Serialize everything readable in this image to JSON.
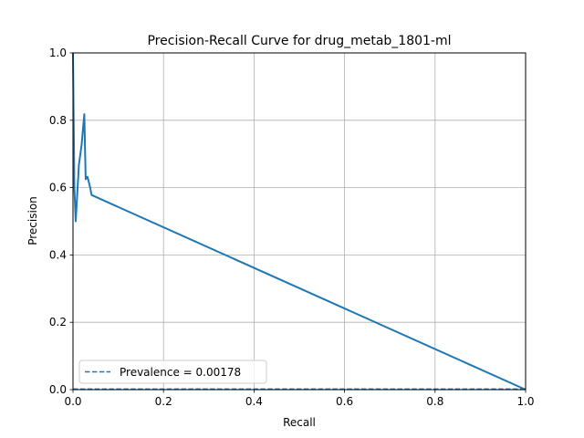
{
  "chart_data": {
    "type": "line",
    "title": "Precision-Recall Curve for drug_metab_1801-ml",
    "xlabel": "Recall",
    "ylabel": "Precision",
    "xlim": [
      0,
      1
    ],
    "ylim": [
      0,
      1
    ],
    "grid": true,
    "x_ticks": [
      "0.0",
      "0.2",
      "0.4",
      "0.6",
      "0.8",
      "1.0"
    ],
    "y_ticks": [
      "0.0",
      "0.2",
      "0.4",
      "0.6",
      "0.8",
      "1.0"
    ],
    "legend_position": "lower-left",
    "series": [
      {
        "color": "#1f77b4",
        "style": "solid",
        "x": [
          0.0,
          0.003,
          0.006,
          0.013,
          0.019,
          0.025,
          0.028,
          0.032,
          0.038,
          0.041,
          1.0
        ],
        "y": [
          1.0,
          0.6,
          0.5,
          0.667,
          0.727,
          0.818,
          0.625,
          0.632,
          0.6,
          0.578,
          0.0
        ]
      },
      {
        "name": "Prevalence = 0.00178",
        "color": "#1f77b4",
        "style": "dashed",
        "x": [
          0,
          1
        ],
        "y": [
          0.00178,
          0.00178
        ]
      }
    ]
  }
}
